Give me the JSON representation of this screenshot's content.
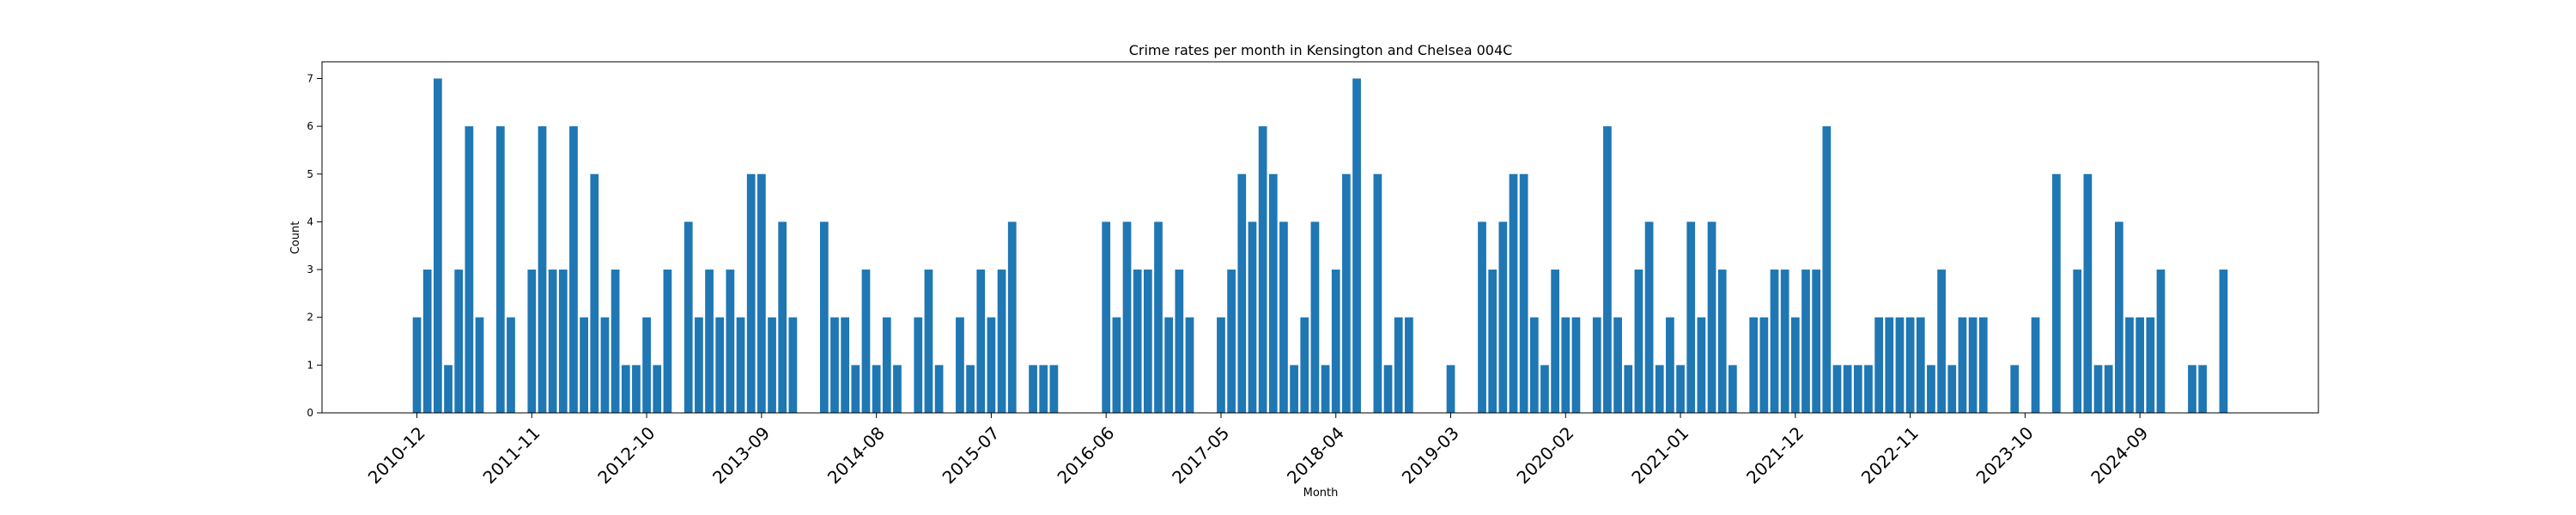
{
  "chart_data": {
    "type": "bar",
    "title": "Crime rates per month in Kensington and Chelsea 004C",
    "xlabel": "Month",
    "ylabel": "Count",
    "ylim": [
      0,
      7.35
    ],
    "yticks": [
      0,
      1,
      2,
      3,
      4,
      5,
      6,
      7
    ],
    "xticks": [
      "2010-12",
      "2011-11",
      "2012-10",
      "2013-09",
      "2014-08",
      "2015-07",
      "2016-06",
      "2017-05",
      "2018-04",
      "2019-03",
      "2020-02",
      "2021-01",
      "2021-12",
      "2022-11",
      "2023-10",
      "2024-09"
    ],
    "start_month": "2010-12",
    "grid": false,
    "color": "#1f77b4",
    "values": [
      2,
      3,
      7,
      1,
      3,
      6,
      2,
      0,
      6,
      2,
      0,
      3,
      6,
      3,
      3,
      6,
      2,
      5,
      2,
      3,
      1,
      1,
      2,
      1,
      3,
      0,
      4,
      2,
      3,
      2,
      3,
      2,
      5,
      5,
      2,
      4,
      2,
      0,
      0,
      4,
      2,
      2,
      1,
      3,
      1,
      2,
      1,
      0,
      2,
      3,
      1,
      0,
      2,
      1,
      3,
      2,
      3,
      4,
      0,
      1,
      1,
      1,
      0,
      0,
      0,
      0,
      4,
      2,
      4,
      3,
      3,
      4,
      2,
      3,
      2,
      0,
      0,
      2,
      3,
      5,
      4,
      6,
      5,
      4,
      1,
      2,
      4,
      1,
      3,
      5,
      7,
      0,
      5,
      1,
      2,
      2,
      0,
      0,
      0,
      1,
      0,
      0,
      4,
      3,
      4,
      5,
      5,
      2,
      1,
      3,
      2,
      2,
      0,
      2,
      6,
      2,
      1,
      3,
      4,
      1,
      2,
      1,
      4,
      2,
      4,
      3,
      1,
      0,
      2,
      2,
      3,
      3,
      2,
      3,
      3,
      6,
      1,
      1,
      1,
      1,
      2,
      2,
      2,
      2,
      2,
      1,
      3,
      1,
      2,
      2,
      2,
      0,
      0,
      1,
      0,
      2,
      0,
      5,
      0,
      3,
      5,
      1,
      1,
      4,
      2,
      2,
      2,
      3,
      0,
      0,
      1,
      1,
      0,
      3
    ]
  }
}
